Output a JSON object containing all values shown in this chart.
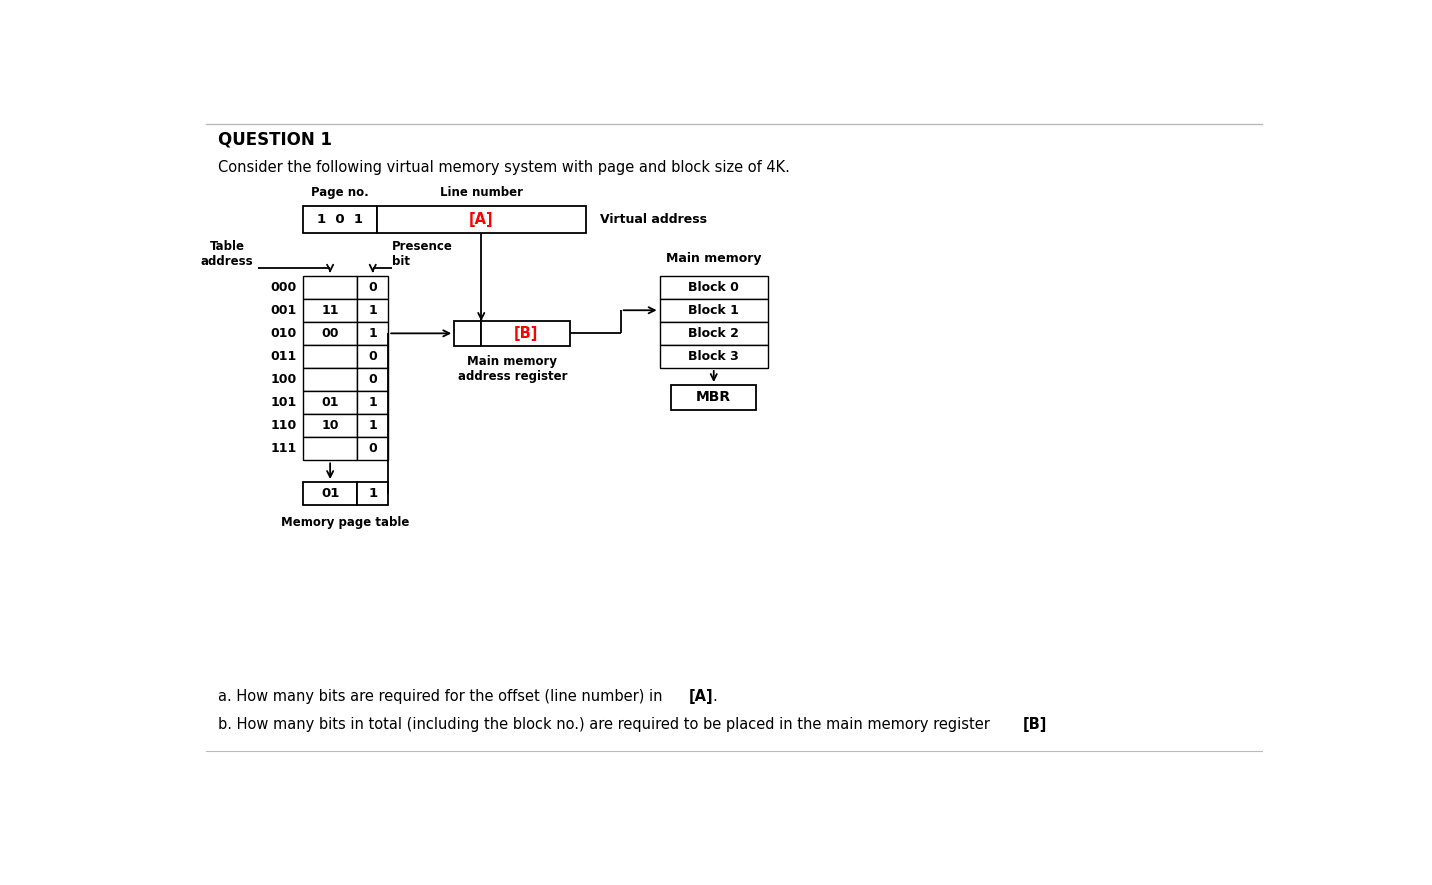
{
  "title": "QUESTION 1",
  "subtitle": "Consider the following virtual memory system with page and block size of 4K.",
  "bg_color": "#ffffff",
  "text_color": "#000000",
  "red_color": "#ff0000",
  "page_no_label": "Page no.",
  "line_number_label": "Line number",
  "virtual_address_label": "Virtual address",
  "page_no_value": "1  0  1",
  "line_number_value": "[A]",
  "table_address_label": "Table\naddress",
  "presence_bit_label": "Presence\nbit",
  "table_rows": [
    {
      "addr": "000",
      "block": "",
      "pbit": "0"
    },
    {
      "addr": "001",
      "block": "11",
      "pbit": "1"
    },
    {
      "addr": "010",
      "block": "00",
      "pbit": "1"
    },
    {
      "addr": "011",
      "block": "",
      "pbit": "0"
    },
    {
      "addr": "100",
      "block": "",
      "pbit": "0"
    },
    {
      "addr": "101",
      "block": "01",
      "pbit": "1"
    },
    {
      "addr": "110",
      "block": "10",
      "pbit": "1"
    },
    {
      "addr": "111",
      "block": "",
      "pbit": "0"
    }
  ],
  "bottom_box_block": "01",
  "bottom_box_pbit": "1",
  "memory_page_table_label": "Memory page table",
  "main_memory_addr_reg_label": "Main memory\naddress register",
  "main_memory_label": "Main memory",
  "mm_blocks": [
    "Block 0",
    "Block 1",
    "Block 2",
    "Block 3"
  ],
  "mbr_label": "MBR",
  "b_label": "[B]",
  "qa_text": "a. How many bits are required for the offset (line number) in ",
  "qa_bold": "[A]",
  "qa_end": ".",
  "qb_text": "b. How many bits in total (including the block no.) are required to be placed in the main memory register ",
  "qb_bold": "[B]"
}
